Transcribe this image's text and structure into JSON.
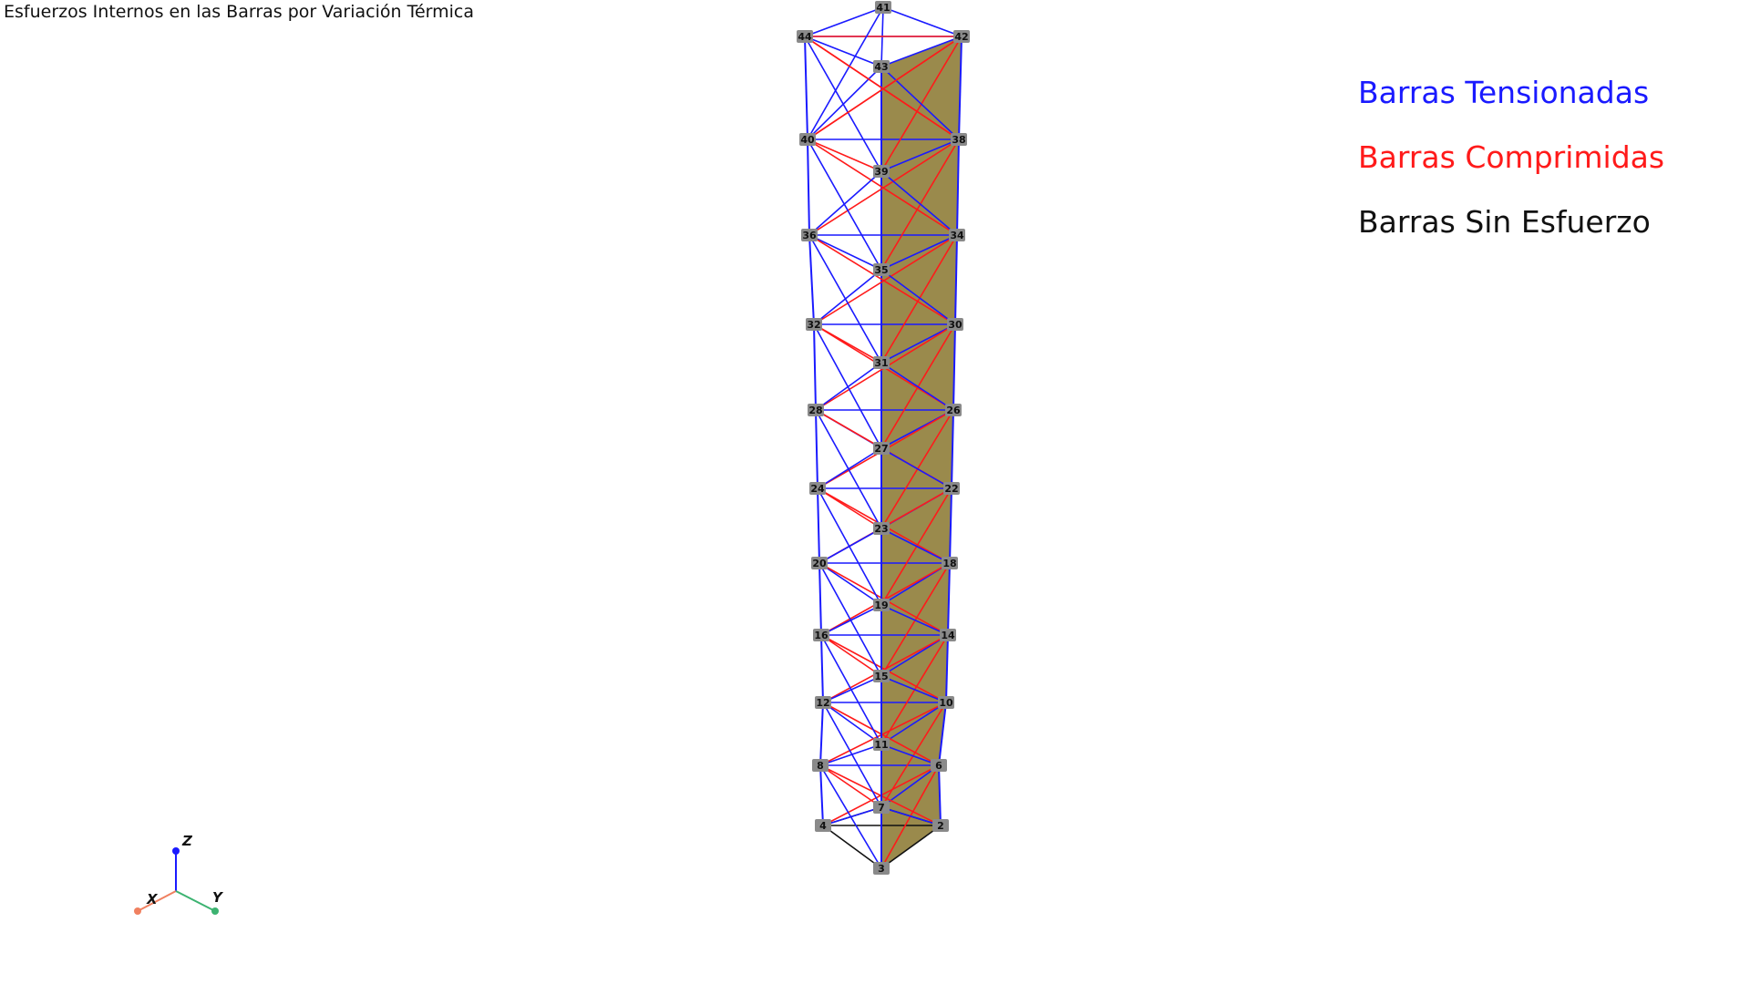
{
  "title": "Esfuerzos Internos en las Barras por Variación Térmica",
  "legend": [
    {
      "label": "Barras Tensionadas",
      "color": "#1a1aff"
    },
    {
      "label": "Barras Comprimidas",
      "color": "#ff1a1a"
    },
    {
      "label": "Barras Sin Esfuerzo",
      "color": "#111111"
    }
  ],
  "colors": {
    "panel_fill": "#9a8a4c",
    "node_marker": "#8a8a8a",
    "axis_x": "#f08060",
    "axis_y": "#3cb371",
    "axis_z": "#1a1aff"
  },
  "axes": {
    "x": "X",
    "y": "Y",
    "z": "Z"
  },
  "nodes": [
    "2",
    "3",
    "4",
    "6",
    "7",
    "8",
    "10",
    "11",
    "12",
    "14",
    "15",
    "16",
    "18",
    "19",
    "20",
    "22",
    "23",
    "24",
    "26",
    "27",
    "28",
    "30",
    "31",
    "32",
    "34",
    "35",
    "36",
    "38",
    "39",
    "40",
    "41",
    "42",
    "43",
    "44"
  ]
}
